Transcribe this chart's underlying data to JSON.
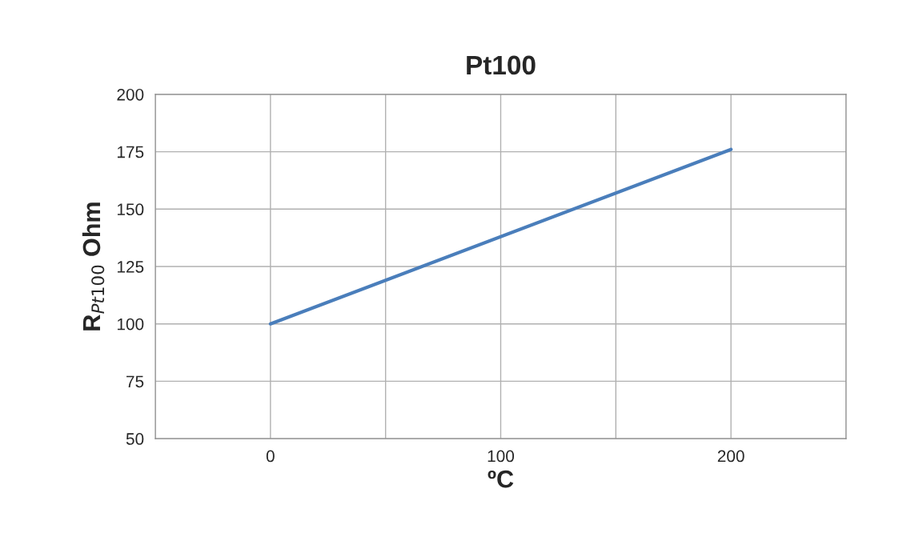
{
  "chart_data": {
    "type": "line",
    "title": "Pt100",
    "xlabel": "ºC",
    "ylabel": "R$_{Pt100}$ Ohm",
    "x": [
      0,
      200
    ],
    "series": [
      {
        "color": "#4a7ebb",
        "values": [
          100,
          176
        ]
      }
    ],
    "xlim": [
      -50,
      250
    ],
    "xticks": [
      {
        "value": -50,
        "label": null
      },
      0,
      {
        "value": 50,
        "label": null
      },
      100,
      {
        "value": 150,
        "label": null
      },
      200,
      {
        "value": 250,
        "label": null
      }
    ],
    "ylim": [
      50,
      200
    ],
    "yticks": [
      50,
      75,
      100,
      125,
      150,
      175,
      200
    ],
    "grid": true,
    "marker": "none",
    "line_style": "solid"
  }
}
